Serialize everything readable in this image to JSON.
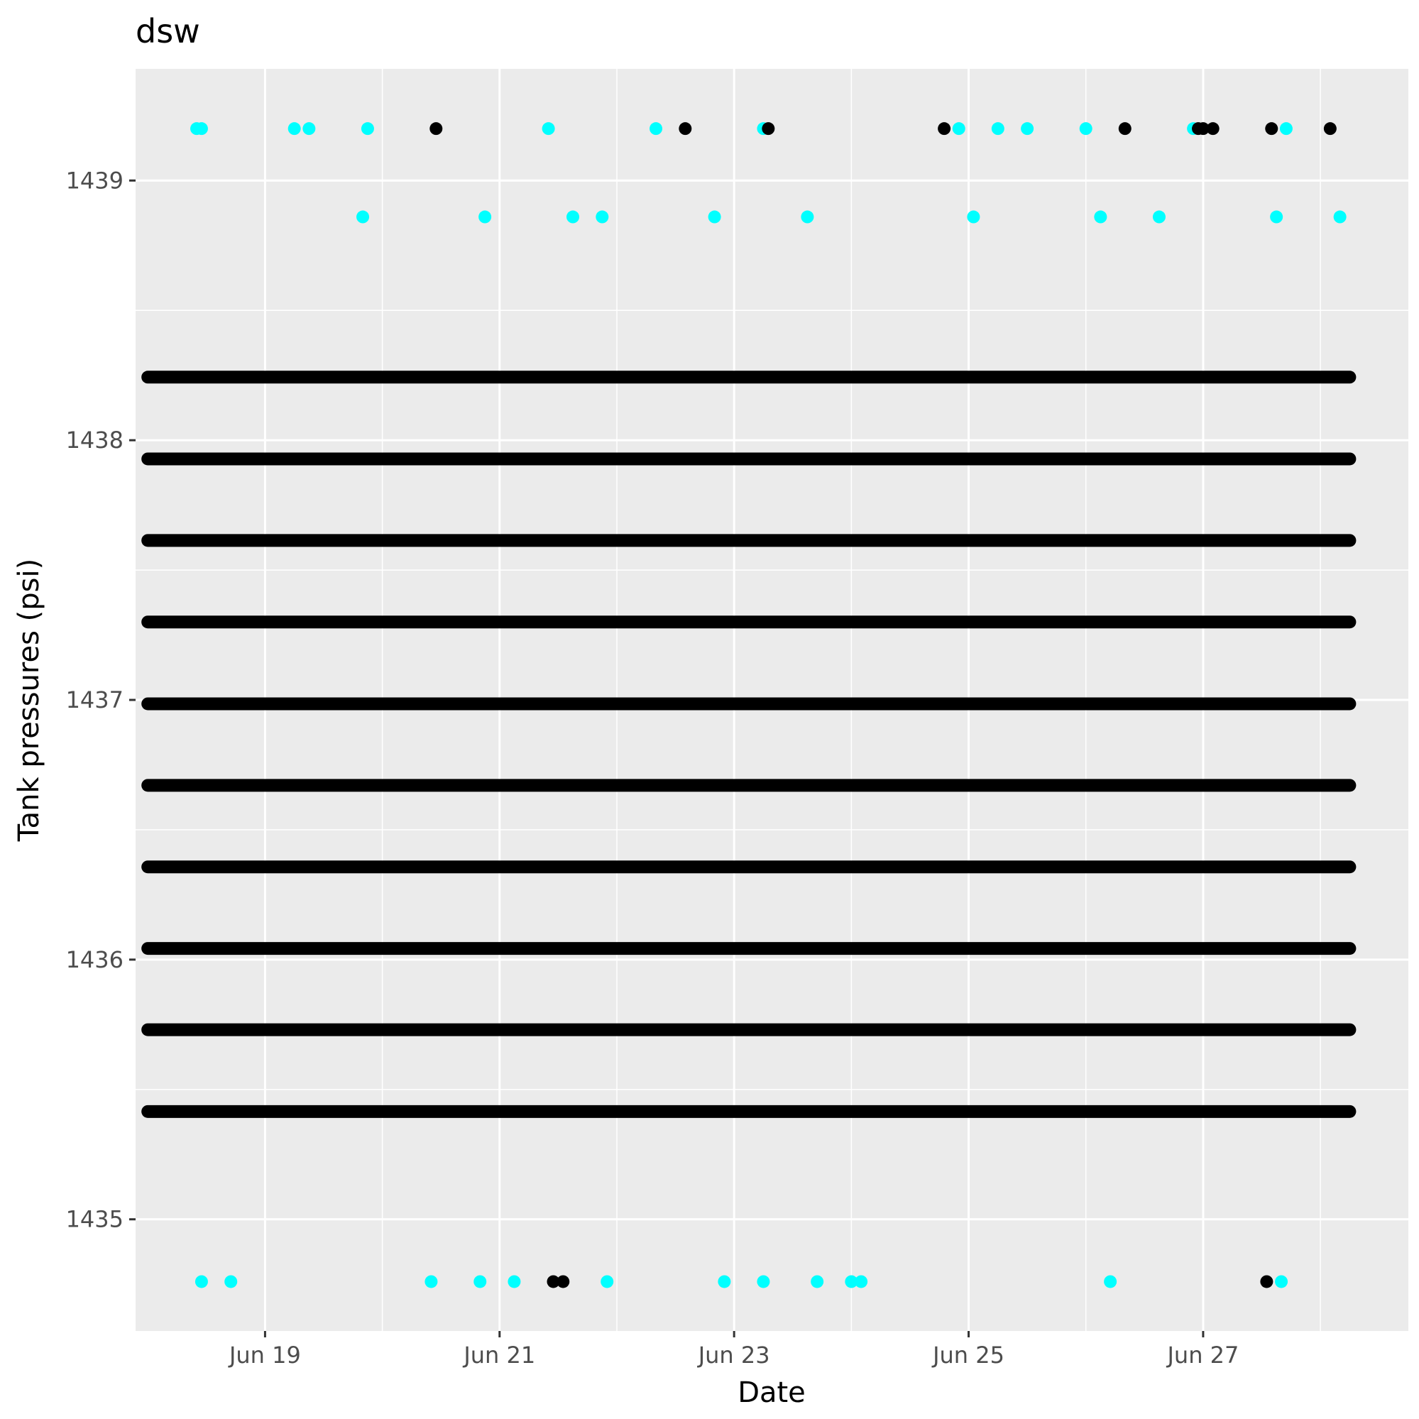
{
  "chart_data": {
    "type": "scatter",
    "title": "dsw",
    "xlabel": "Date",
    "ylabel": "Tank pressures (psi)",
    "x_ticks": [
      "Jun 19",
      "Jun 21",
      "Jun 23",
      "Jun 25",
      "Jun 27"
    ],
    "y_ticks": [
      1435,
      1436,
      1437,
      1438,
      1439
    ],
    "xlim": [
      "2024-06-17T21:30",
      "2024-06-28T18:00"
    ],
    "ylim": [
      1434.57,
      1439.43
    ],
    "x_range": [
      "2024-06-18T00:00",
      "2024-06-28T06:00"
    ],
    "grid": true,
    "legend": "none",
    "colors": {
      "panel": "#ebebeb",
      "grid": "#ffffff",
      "cyan_points": "#00ffff",
      "black_points": "#000000"
    },
    "dense_levels": [
      1435.415,
      1435.73,
      1436.043,
      1436.357,
      1436.671,
      1436.985,
      1437.3,
      1437.614,
      1437.928,
      1438.243
    ],
    "series": [
      {
        "color": "#00ffff",
        "points": [
          [
            "2024-06-18T10:00",
            1439.2
          ],
          [
            "2024-06-18T11:00",
            1439.2
          ],
          [
            "2024-06-19T06:00",
            1439.2
          ],
          [
            "2024-06-19T09:00",
            1439.2
          ],
          [
            "2024-06-19T21:00",
            1439.2
          ],
          [
            "2024-06-21T10:00",
            1439.2
          ],
          [
            "2024-06-22T08:00",
            1439.2
          ],
          [
            "2024-06-23T06:00",
            1439.2
          ],
          [
            "2024-06-24T22:00",
            1439.2
          ],
          [
            "2024-06-25T06:00",
            1439.2
          ],
          [
            "2024-06-25T12:00",
            1439.2
          ],
          [
            "2024-06-26T00:00",
            1439.2
          ],
          [
            "2024-06-26T22:00",
            1439.2
          ],
          [
            "2024-06-27T17:00",
            1439.2
          ],
          [
            "2024-06-19T20:00",
            1438.86
          ],
          [
            "2024-06-20T21:00",
            1438.86
          ],
          [
            "2024-06-21T15:00",
            1438.86
          ],
          [
            "2024-06-21T21:00",
            1438.86
          ],
          [
            "2024-06-22T20:00",
            1438.86
          ],
          [
            "2024-06-23T15:00",
            1438.86
          ],
          [
            "2024-06-25T01:00",
            1438.86
          ],
          [
            "2024-06-26T03:00",
            1438.86
          ],
          [
            "2024-06-26T15:00",
            1438.86
          ],
          [
            "2024-06-27T15:00",
            1438.86
          ],
          [
            "2024-06-28T04:00",
            1438.86
          ],
          [
            "2024-06-18T11:00",
            1434.76
          ],
          [
            "2024-06-18T17:00",
            1434.76
          ],
          [
            "2024-06-20T10:00",
            1434.76
          ],
          [
            "2024-06-20T20:00",
            1434.76
          ],
          [
            "2024-06-21T03:00",
            1434.76
          ],
          [
            "2024-06-21T22:00",
            1434.76
          ],
          [
            "2024-06-22T22:00",
            1434.76
          ],
          [
            "2024-06-23T06:00",
            1434.76
          ],
          [
            "2024-06-23T17:00",
            1434.76
          ],
          [
            "2024-06-24T00:00",
            1434.76
          ],
          [
            "2024-06-24T02:00",
            1434.76
          ],
          [
            "2024-06-26T05:00",
            1434.76
          ],
          [
            "2024-06-27T16:00",
            1434.76
          ]
        ]
      },
      {
        "color": "#000000",
        "points": [
          [
            "2024-06-20T11:00",
            1439.2
          ],
          [
            "2024-06-22T14:00",
            1439.2
          ],
          [
            "2024-06-23T07:00",
            1439.2
          ],
          [
            "2024-06-24T19:00",
            1439.2
          ],
          [
            "2024-06-26T08:00",
            1439.2
          ],
          [
            "2024-06-26T23:00",
            1439.2
          ],
          [
            "2024-06-27T00:00",
            1439.2
          ],
          [
            "2024-06-27T02:00",
            1439.2
          ],
          [
            "2024-06-27T14:00",
            1439.2
          ],
          [
            "2024-06-28T02:00",
            1439.2
          ],
          [
            "2024-06-21T11:00",
            1434.76
          ],
          [
            "2024-06-21T13:00",
            1434.76
          ],
          [
            "2024-06-27T13:00",
            1434.76
          ]
        ]
      }
    ]
  }
}
